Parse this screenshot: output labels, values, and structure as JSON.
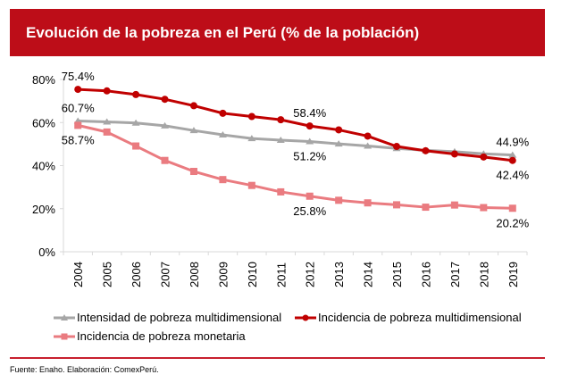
{
  "header": {
    "title": "Evolución de la pobreza en el Perú (% de la población)"
  },
  "chart_data": {
    "type": "line",
    "title": "Evolución de la pobreza en el Perú (% de la población)",
    "xlabel": "",
    "ylabel": "",
    "categories": [
      "2004",
      "2005",
      "2006",
      "2007",
      "2008",
      "2009",
      "2010",
      "2011",
      "2012",
      "2013",
      "2014",
      "2015",
      "2016",
      "2017",
      "2018",
      "2019"
    ],
    "ylim": [
      0,
      80
    ],
    "yticks": [
      0,
      20,
      40,
      60,
      80
    ],
    "ytick_labels": [
      "0%",
      "20%",
      "40%",
      "60%",
      "80%"
    ],
    "grid": false,
    "legend_position": "bottom",
    "series": [
      {
        "name": "Intensidad de pobreza multidimensional",
        "color": "#a6a6a6",
        "marker": "triangle",
        "values": [
          60.7,
          60.3,
          59.8,
          58.5,
          56.3,
          54.3,
          52.6,
          51.8,
          51.2,
          50.1,
          49.1,
          48.0,
          47.1,
          46.5,
          45.5,
          44.9
        ]
      },
      {
        "name": "Incidencia de pobreza multidimensional",
        "color": "#c00000",
        "marker": "circle",
        "values": [
          75.4,
          74.7,
          73.0,
          70.8,
          67.8,
          64.3,
          62.8,
          61.3,
          58.4,
          56.6,
          53.7,
          48.9,
          46.9,
          45.4,
          44.0,
          42.4
        ]
      },
      {
        "name": "Incidencia de pobreza monetaria",
        "color": "#ea7b80",
        "marker": "square",
        "values": [
          58.7,
          55.6,
          49.1,
          42.4,
          37.3,
          33.5,
          30.8,
          27.8,
          25.8,
          23.9,
          22.7,
          21.8,
          20.7,
          21.7,
          20.5,
          20.2
        ]
      }
    ],
    "annotations": [
      {
        "series": 1,
        "index": 0,
        "text": "75.4%",
        "pos": "above"
      },
      {
        "series": 0,
        "index": 0,
        "text": "60.7%",
        "pos": "above"
      },
      {
        "series": 2,
        "index": 0,
        "text": "58.7%",
        "pos": "below"
      },
      {
        "series": 1,
        "index": 8,
        "text": "58.4%",
        "pos": "above"
      },
      {
        "series": 0,
        "index": 8,
        "text": "51.2%",
        "pos": "below"
      },
      {
        "series": 2,
        "index": 8,
        "text": "25.8%",
        "pos": "below"
      },
      {
        "series": 0,
        "index": 15,
        "text": "44.9%",
        "pos": "above"
      },
      {
        "series": 1,
        "index": 15,
        "text": "42.4%",
        "pos": "below"
      },
      {
        "series": 2,
        "index": 15,
        "text": "20.2%",
        "pos": "below"
      }
    ]
  },
  "legend": {
    "items": [
      "Intensidad de pobreza multidimensional",
      "Incidencia de pobreza multidimensional",
      "Incidencia de pobreza monetaria"
    ]
  },
  "footer": {
    "source": "Fuente: Enaho. Elaboración: ComexPerú."
  }
}
